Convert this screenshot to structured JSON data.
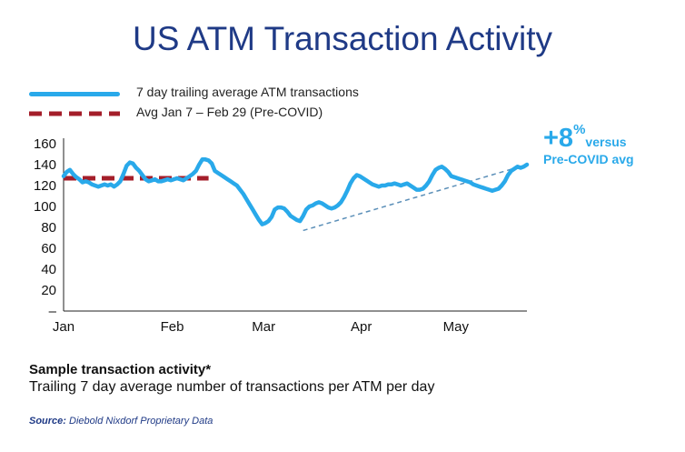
{
  "title": "US ATM Transaction Activity",
  "legend": [
    {
      "label": "7 day trailing average ATM transactions",
      "color": "#29a9ea",
      "style": "solid"
    },
    {
      "label": "Avg Jan 7 – Feb 29 (Pre-COVID)",
      "color": "#a41e2a",
      "style": "dashed"
    }
  ],
  "annotation": {
    "value": "+8",
    "unit": "%",
    "text1": "versus",
    "text2": "Pre-COVID avg"
  },
  "subtitle": "Sample transaction activity*",
  "description": "Trailing 7 day average number of transactions per ATM per day",
  "source": {
    "prefix": "Source:",
    "text": "Diebold Nixdorf Proprietary Data"
  },
  "chart_data": {
    "type": "line",
    "ylim": [
      0,
      160
    ],
    "y_ticks": [
      "–",
      "20",
      "40",
      "60",
      "80",
      "100",
      "120",
      "140",
      "160"
    ],
    "x_ticks": [
      {
        "label": "Jan",
        "day": 0
      },
      {
        "label": "Feb",
        "day": 31
      },
      {
        "label": "Mar",
        "day": 60
      },
      {
        "label": "Apr",
        "day": 91
      },
      {
        "label": "May",
        "day": 121
      }
    ],
    "x_max": 147,
    "series": [
      {
        "name": "7 day trailing average ATM transactions",
        "color": "#29a9ea",
        "x": [
          0,
          1,
          2,
          3,
          4,
          5,
          6,
          7,
          8,
          9,
          10,
          11,
          12,
          13,
          14,
          15,
          16,
          17,
          18,
          19,
          20,
          21,
          22,
          23,
          24,
          25,
          26,
          27,
          28,
          29,
          30,
          31,
          32,
          33,
          34,
          35,
          36,
          37,
          38,
          39,
          40,
          41,
          42,
          43,
          44,
          45,
          46,
          47,
          48,
          49,
          50,
          51,
          52,
          53,
          54,
          55,
          56,
          57,
          58,
          59,
          60,
          61,
          62,
          63,
          64,
          65,
          66,
          67,
          68,
          69,
          70,
          71,
          72,
          73,
          74,
          75,
          76,
          77,
          78,
          79,
          80,
          81,
          82,
          83,
          84,
          85,
          86,
          87,
          88,
          89,
          90,
          91,
          92,
          93,
          94,
          95,
          96,
          97,
          98,
          99,
          100,
          101,
          102,
          103,
          104,
          105,
          106,
          107,
          108,
          109,
          110,
          111,
          112,
          113,
          114,
          115,
          116,
          117,
          118,
          119,
          120,
          121,
          122,
          123,
          124,
          125,
          126,
          127,
          128,
          129,
          130,
          131,
          132,
          133,
          134,
          135,
          136,
          137,
          138,
          139,
          140,
          141,
          142,
          143,
          144,
          145,
          146,
          147
        ],
        "y": [
          129,
          133,
          135,
          131,
          128,
          126,
          123,
          124,
          123,
          121,
          120,
          119,
          120,
          121,
          120,
          121,
          119,
          121,
          124,
          131,
          139,
          142,
          141,
          137,
          134,
          130,
          126,
          124,
          125,
          126,
          124,
          124,
          125,
          126,
          125,
          126,
          127,
          126,
          125,
          127,
          129,
          131,
          134,
          140,
          145,
          145,
          144,
          141,
          134,
          132,
          130,
          128,
          126,
          124,
          122,
          120,
          116,
          112,
          107,
          102,
          97,
          92,
          87,
          83,
          84,
          86,
          90,
          97,
          99,
          99,
          98,
          95,
          91,
          89,
          87,
          86,
          91,
          97,
          100,
          101,
          103,
          104,
          103,
          101,
          99,
          98,
          99,
          101,
          104,
          109,
          115,
          122,
          127,
          130,
          129,
          127,
          125,
          123,
          121,
          120,
          119,
          120,
          120,
          121,
          121,
          122,
          121,
          120,
          121,
          122,
          120,
          118,
          116,
          116,
          117,
          120,
          124,
          130,
          135,
          137,
          138,
          136,
          133,
          129,
          128,
          127,
          126,
          125,
          124,
          123,
          121,
          120,
          119,
          118,
          117,
          116,
          115,
          116,
          117,
          120,
          124,
          130,
          134,
          136,
          138,
          137,
          138,
          140
        ]
      },
      {
        "name": "Avg Jan 7 – Feb 29 (Pre-COVID)",
        "color": "#a41e2a",
        "x": [
          0,
          46
        ],
        "y": [
          127,
          127
        ]
      }
    ],
    "trend": {
      "x": [
        76,
        147
      ],
      "y": [
        77,
        140
      ]
    }
  }
}
